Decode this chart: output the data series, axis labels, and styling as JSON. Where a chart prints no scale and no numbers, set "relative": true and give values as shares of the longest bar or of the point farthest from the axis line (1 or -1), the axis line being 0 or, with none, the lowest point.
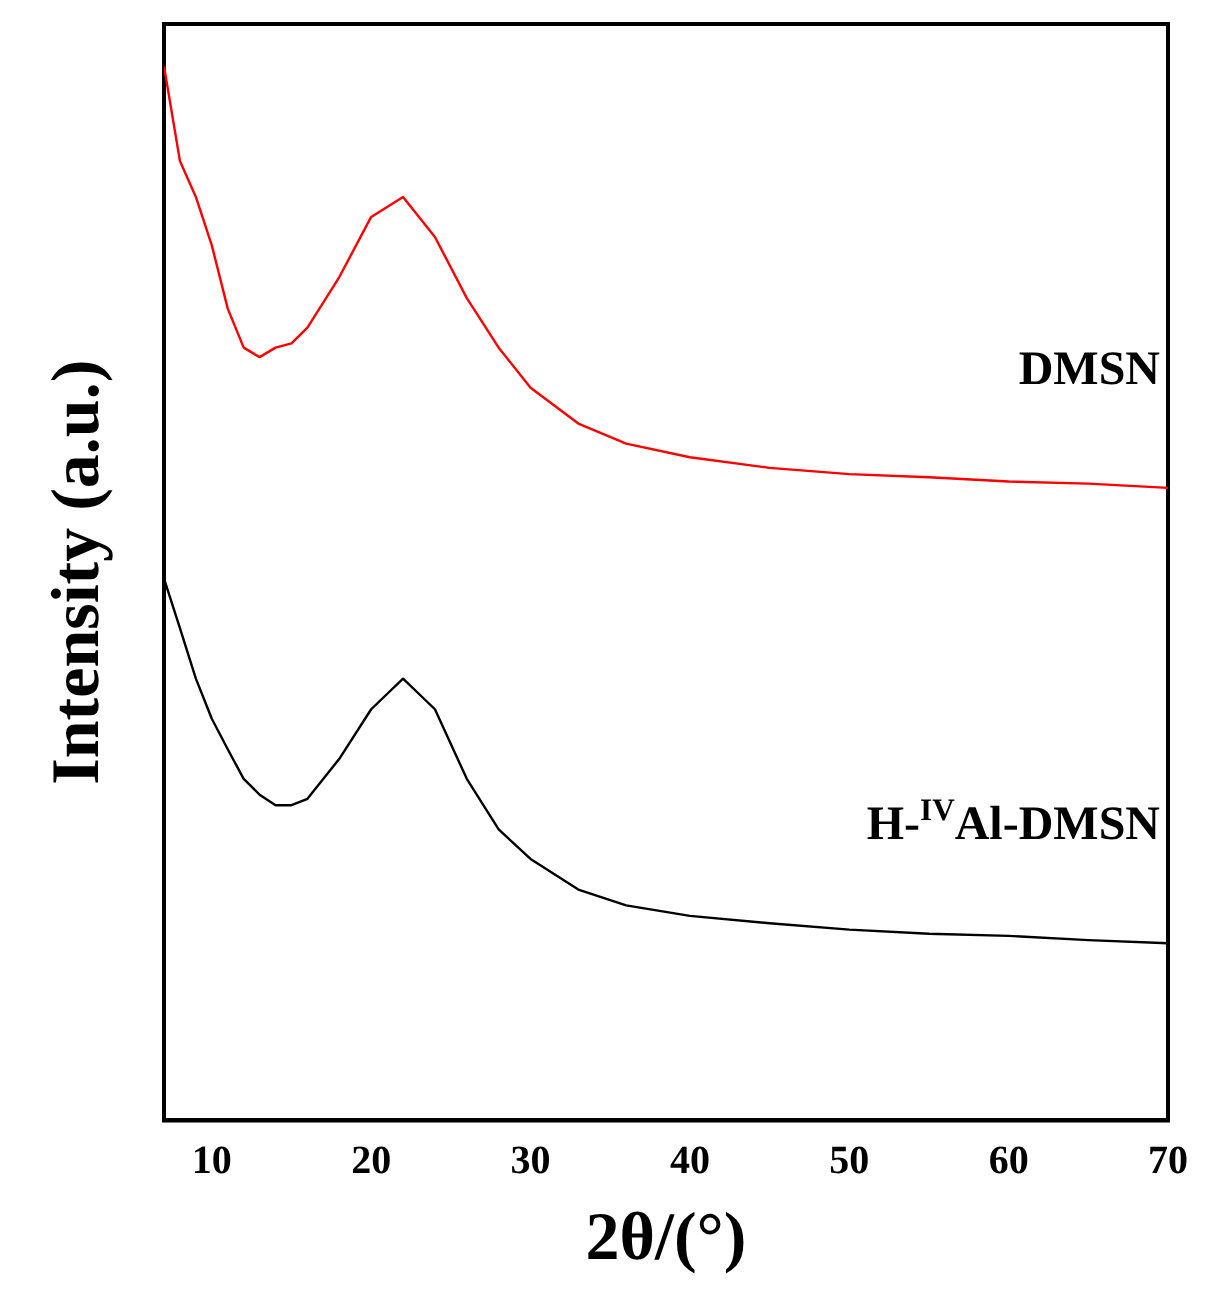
{
  "chart_data": {
    "type": "line",
    "xlabel": "2θ/(°)",
    "ylabel": "Intensity (a.u.)",
    "relative": true,
    "xlim": [
      7,
      70
    ],
    "xticks": [
      10,
      20,
      30,
      40,
      50,
      60,
      70
    ],
    "grid": false,
    "legend": false,
    "marker": "none",
    "line_style": "solid",
    "x": [
      7,
      8,
      9,
      10,
      11,
      12,
      13,
      14,
      15,
      16,
      18,
      20,
      22,
      24,
      26,
      28,
      30,
      33,
      36,
      40,
      45,
      50,
      55,
      60,
      65,
      70
    ],
    "series": [
      {
        "name": "DMSN",
        "color": "#ff0000",
        "values": [
          1.0,
          0.91,
          0.876,
          0.83,
          0.77,
          0.733,
          0.724,
          0.733,
          0.737,
          0.752,
          0.8,
          0.857,
          0.876,
          0.838,
          0.78,
          0.733,
          0.695,
          0.661,
          0.642,
          0.629,
          0.619,
          0.613,
          0.61,
          0.606,
          0.604,
          0.6
        ]
      },
      {
        "name": "H-$^{IV}$Al-DMSN",
        "color": "#000000",
        "values": [
          0.514,
          0.467,
          0.419,
          0.381,
          0.352,
          0.324,
          0.309,
          0.299,
          0.299,
          0.305,
          0.343,
          0.39,
          0.419,
          0.39,
          0.324,
          0.276,
          0.248,
          0.219,
          0.204,
          0.194,
          0.187,
          0.181,
          0.177,
          0.175,
          0.171,
          0.168
        ]
      }
    ]
  }
}
